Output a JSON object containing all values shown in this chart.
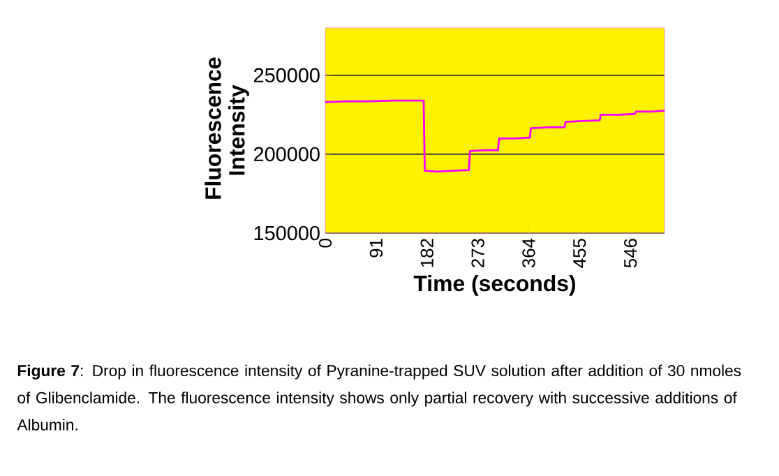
{
  "chart_data": {
    "type": "line",
    "xlabel": "Time (seconds)",
    "ylabel": "Fluorescence Intensity",
    "xlim": [
      0,
      607
    ],
    "ylim": [
      150000,
      280000
    ],
    "xticks": [
      0,
      91,
      182,
      273,
      364,
      455,
      546
    ],
    "yticks": [
      150000,
      200000,
      250000
    ],
    "grid": "y",
    "marker": "none",
    "line_style": "solid",
    "series": [
      {
        "color": "#ff00ff",
        "x": [
          0,
          40,
          80,
          120,
          160,
          176,
          178,
          200,
          230,
          257,
          259,
          285,
          309,
          311,
          340,
          366,
          368,
          400,
          428,
          430,
          460,
          491,
          493,
          525,
          554,
          556,
          585,
          607
        ],
        "values": [
          233000,
          233500,
          233500,
          234000,
          234000,
          234000,
          189500,
          189000,
          189500,
          190000,
          202000,
          202500,
          202500,
          210000,
          210000,
          210500,
          216500,
          217000,
          217000,
          220500,
          221000,
          221500,
          225000,
          225000,
          225500,
          227000,
          227000,
          227500
        ]
      }
    ],
    "annotations": [
      "**Figure 7**: Drop in fluorescence intensity of Pyranine-trapped SUV solution after addition of 30 nmoles of Glibenclamide. The fluorescence intensity shows only partial recovery with successive additions of Albumin."
    ]
  }
}
